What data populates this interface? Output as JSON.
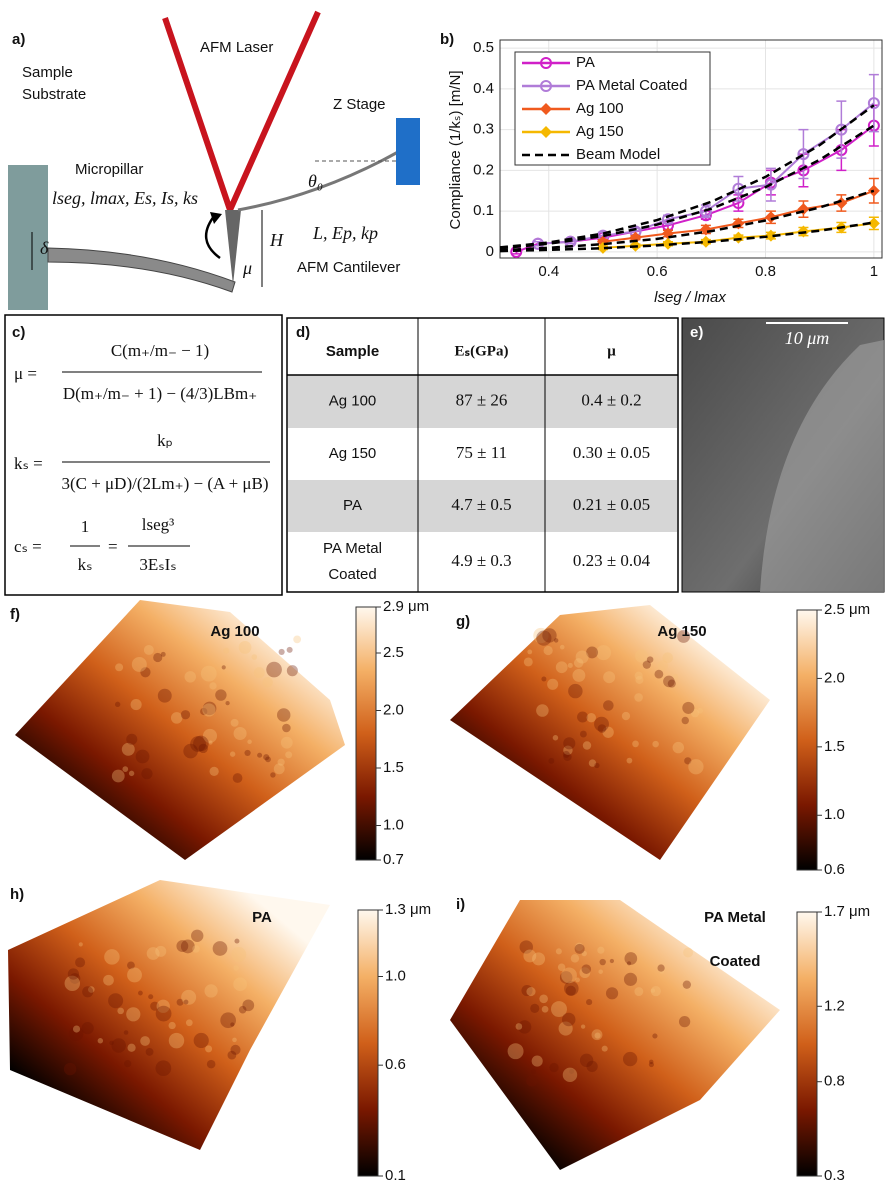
{
  "panel_a": {
    "label": "a)",
    "sample_substrate": [
      "Sample",
      "Substrate"
    ],
    "laser": "AFM Laser",
    "z_stage": "Z Stage",
    "micropillar": "Micropillar",
    "pillar_params": "lseg, lmax, Es, Is, ks",
    "delta": "δ",
    "theta": "θ₀",
    "height": "H",
    "mu": "μ",
    "cantilever_params": "L, Ep, kp",
    "cantilever": "AFM Cantilever"
  },
  "panel_c": {
    "label": "c)",
    "mu_lhs": "μ =",
    "mu_num": "C(m₊/m₋ − 1)",
    "mu_den": "D(m₊/m₋ + 1) − (4/3)LBm₊",
    "ks_lhs": "kₛ =",
    "ks_num": "kₚ",
    "ks_den": "3(C + μD)/(2Lm₊) − (A + μB)",
    "cs_lhs": "cₛ =",
    "cs_num1": "1",
    "cs_den1": "kₛ",
    "cs_eq": "=",
    "cs_num2": "lseg³",
    "cs_den2": "3EₛIₛ"
  },
  "panel_d": {
    "label": "d)",
    "header": [
      "Sample",
      "Eₛ(GPa)",
      "μ"
    ],
    "rows": [
      [
        "Ag 100",
        "87 ± 26",
        "0.4 ± 0.2"
      ],
      [
        "Ag 150",
        "75 ± 11",
        "0.30 ± 0.05"
      ],
      [
        "PA",
        "4.7 ± 0.5",
        "0.21 ± 0.05"
      ],
      [
        [
          "PA Metal",
          "Coated"
        ],
        "4.9 ± 0.3",
        "0.23 ± 0.04"
      ]
    ]
  },
  "panel_e": {
    "label": "e)",
    "scale_bar": "10 μm"
  },
  "chart_data": [
    {
      "type": "line",
      "panel_label": "b)",
      "x_label": "lseg / lmax",
      "y_label": "Compliance (1/kₛ) [m/N]",
      "xlim": [
        0.31,
        1.015
      ],
      "ylim": [
        -0.015,
        0.52
      ],
      "xticks": [
        0.4,
        0.6,
        0.8,
        1
      ],
      "yticks": [
        0,
        0.1,
        0.2,
        0.3,
        0.4,
        0.5
      ],
      "grid": true,
      "legend": "upper-left",
      "series": [
        {
          "name": "PA",
          "color": "#d020c8",
          "marker": "circle",
          "x": [
            0.34,
            0.38,
            0.44,
            0.5,
            0.56,
            0.62,
            0.69,
            0.75,
            0.81,
            0.87,
            0.94,
            1.0
          ],
          "values": [
            0.0,
            0.02,
            0.025,
            0.035,
            0.05,
            0.065,
            0.09,
            0.12,
            0.17,
            0.2,
            0.25,
            0.31
          ],
          "errors": [
            0.005,
            0.005,
            0.005,
            0.005,
            0.008,
            0.01,
            0.01,
            0.02,
            0.03,
            0.04,
            0.05,
            0.05
          ]
        },
        {
          "name": "PA Metal Coated",
          "color": "#b07cd8",
          "marker": "circle",
          "x": [
            0.38,
            0.44,
            0.5,
            0.56,
            0.62,
            0.69,
            0.75,
            0.81,
            0.87,
            0.94,
            1.0
          ],
          "values": [
            0.02,
            0.025,
            0.04,
            0.05,
            0.08,
            0.1,
            0.155,
            0.165,
            0.24,
            0.3,
            0.365
          ],
          "errors": [
            0.005,
            0.005,
            0.008,
            0.008,
            0.01,
            0.015,
            0.03,
            0.04,
            0.06,
            0.07,
            0.07
          ]
        },
        {
          "name": "Ag 100",
          "color": "#f05a1e",
          "marker": "diamond",
          "x": [
            0.5,
            0.56,
            0.62,
            0.69,
            0.75,
            0.81,
            0.87,
            0.94,
            1.0
          ],
          "values": [
            0.025,
            0.035,
            0.045,
            0.055,
            0.07,
            0.085,
            0.105,
            0.12,
            0.15
          ],
          "errors": [
            0.005,
            0.005,
            0.008,
            0.01,
            0.01,
            0.015,
            0.02,
            0.02,
            0.03
          ]
        },
        {
          "name": "Ag 150",
          "color": "#f5b800",
          "marker": "diamond",
          "x": [
            0.5,
            0.56,
            0.62,
            0.69,
            0.75,
            0.81,
            0.87,
            0.94,
            1.0
          ],
          "values": [
            0.01,
            0.015,
            0.02,
            0.025,
            0.035,
            0.04,
            0.05,
            0.06,
            0.07
          ],
          "errors": [
            0.004,
            0.004,
            0.005,
            0.005,
            0.006,
            0.008,
            0.01,
            0.012,
            0.015
          ]
        },
        {
          "name": "Beam Model",
          "color": "#000000",
          "dashed": true,
          "x": [
            0.31,
            0.4,
            0.5,
            0.6,
            0.7,
            0.8,
            0.9,
            1.0,
            null,
            0.31,
            0.4,
            0.5,
            0.6,
            0.7,
            0.8,
            0.9,
            1.0,
            null,
            0.31,
            0.4,
            0.5,
            0.6,
            0.7,
            0.8,
            0.9,
            1.0,
            null,
            0.31,
            0.4,
            0.5,
            0.6,
            0.7,
            0.8,
            0.9,
            1.0
          ],
          "values": [
            0.009,
            0.02,
            0.039,
            0.067,
            0.106,
            0.159,
            0.226,
            0.31,
            null,
            0.011,
            0.023,
            0.045,
            0.078,
            0.123,
            0.184,
            0.262,
            0.36,
            null,
            0.004,
            0.01,
            0.019,
            0.032,
            0.051,
            0.077,
            0.109,
            0.15,
            null,
            0.002,
            0.005,
            0.009,
            0.016,
            0.025,
            0.037,
            0.052,
            0.072
          ]
        }
      ]
    },
    {
      "type": "colorbar",
      "panel_label": "f)",
      "title": "Ag 100",
      "ylim": [
        0.7,
        2.9
      ],
      "yticks": [
        0.7,
        {
          "value": 1,
          "label": "1.0"
        },
        1.5,
        {
          "value": 2,
          "label": "2.0"
        },
        2.5,
        {
          "value": 2.9,
          "label": "2.9 μm"
        }
      ],
      "colors": [
        "#000000",
        "#7a1800",
        "#d0601a",
        "#f4b066",
        "#fff8ee"
      ]
    },
    {
      "type": "colorbar",
      "panel_label": "g)",
      "title": "Ag 150",
      "ylim": [
        0.6,
        2.5
      ],
      "yticks": [
        0.6,
        {
          "value": 1,
          "label": "1.0"
        },
        1.5,
        {
          "value": 2,
          "label": "2.0"
        },
        {
          "value": 2.5,
          "label": "2.5 μm"
        }
      ],
      "colors": [
        "#000000",
        "#7a1800",
        "#d0601a",
        "#f4b066",
        "#fff8ee"
      ]
    },
    {
      "type": "colorbar",
      "panel_label": "h)",
      "title": "PA",
      "ylim": [
        0.1,
        1.3
      ],
      "yticks": [
        0.1,
        0.6,
        {
          "value": 1,
          "label": "1.0"
        },
        {
          "value": 1.3,
          "label": "1.3 μm"
        }
      ],
      "colors": [
        "#000000",
        "#7a1800",
        "#d0601a",
        "#f4b066",
        "#fff8ee"
      ]
    },
    {
      "type": "colorbar",
      "panel_label": "i)",
      "title": [
        "PA Metal",
        "Coated"
      ],
      "ylim": [
        0.3,
        1.7
      ],
      "yticks": [
        0.3,
        0.8,
        1.2,
        {
          "value": 1.7,
          "label": "1.7 μm"
        }
      ],
      "colors": [
        "#000000",
        "#7a1800",
        "#d0601a",
        "#f4b066",
        "#fff8ee"
      ]
    }
  ]
}
